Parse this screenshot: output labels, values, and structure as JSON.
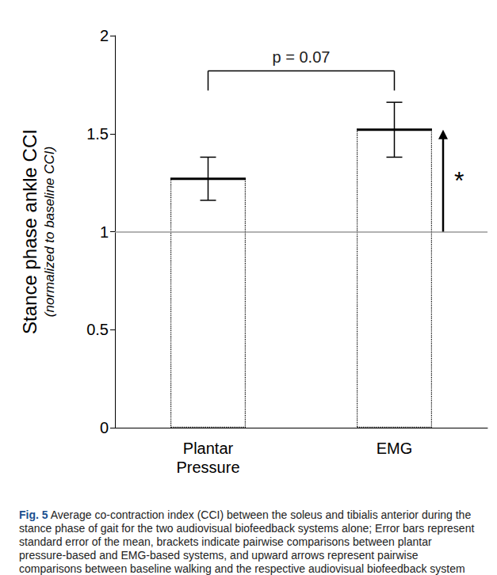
{
  "chart_data": {
    "type": "bar",
    "categories": [
      "Plantar Pressure",
      "EMG"
    ],
    "values": [
      1.27,
      1.52
    ],
    "errors": [
      0.11,
      0.14
    ],
    "baseline": 1,
    "ylim": [
      0,
      2
    ],
    "yticks": [
      0,
      0.5,
      1,
      1.5,
      2
    ],
    "y_label": "Stance phase ankle CCI",
    "y_sublabel": "(normalized to baseline CCI)",
    "grid": false,
    "annotations": [
      {
        "text": "p = 0.07",
        "between": [
          "Plantar Pressure",
          "EMG"
        ]
      },
      {
        "text": "*",
        "category": "EMG"
      }
    ],
    "caption_label": "Fig. 5",
    "caption": "Average co-contraction index (CCI) between the soleus and tibialis anterior during the stance phase of gait for the two audiovisual biofeedback systems alone; Error bars represent standard error of the mean, brackets indicate pairwise comparisons between plantar pressure-based and EMG-based systems, and upward arrows represent pairwise comparisons between baseline walking and the respective audiovisual biofeedback system"
  }
}
